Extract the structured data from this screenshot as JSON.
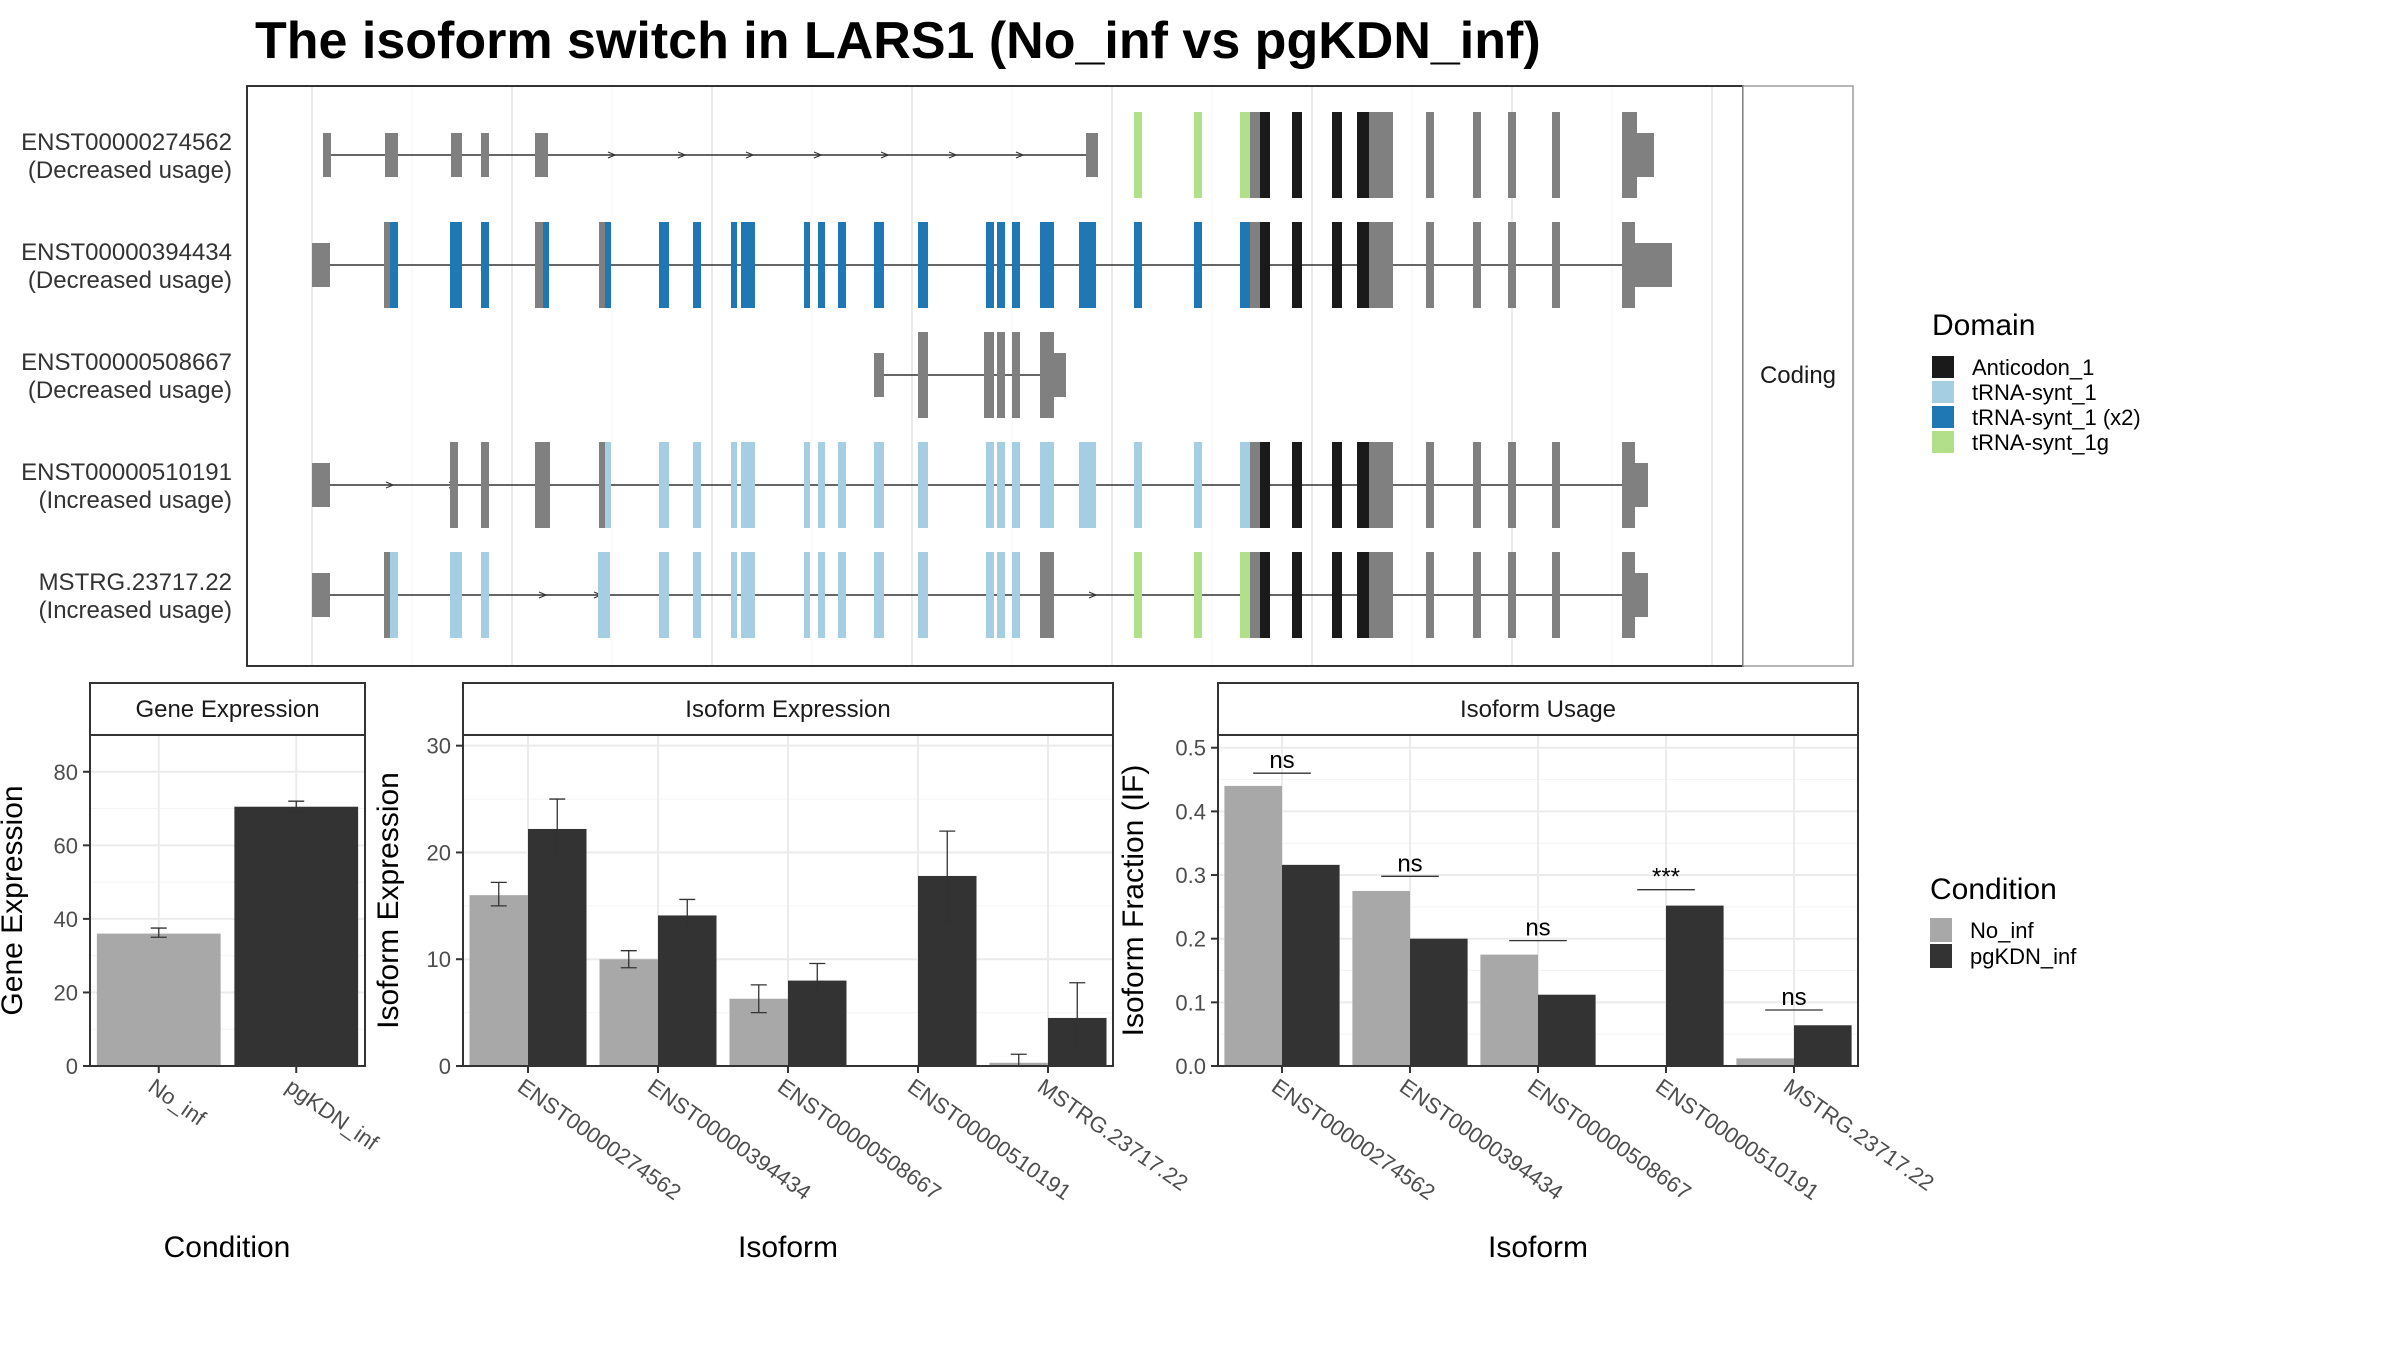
{
  "title": "The isoform switch in LARS1 (No_inf vs pgKDN_inf)",
  "structure_panel": {
    "strip_label": "Coding",
    "isoforms": [
      {
        "id": "ENST00000274562",
        "note": "(Decreased usage)"
      },
      {
        "id": "ENST00000394434",
        "note": "(Decreased usage)"
      },
      {
        "id": "ENST00000508667",
        "note": "(Decreased usage)"
      },
      {
        "id": "ENST00000510191",
        "note": "(Increased usage)"
      },
      {
        "id": "MSTRG.23717.22",
        "note": "(Increased usage)"
      }
    ]
  },
  "domain_legend": {
    "title": "Domain",
    "items": [
      {
        "label": "Anticodon_1",
        "color": "#1a1a1a"
      },
      {
        "label": "tRNA-synt_1",
        "color": "#a6cee3"
      },
      {
        "label": "tRNA-synt_1 (x2)",
        "color": "#1f78b4"
      },
      {
        "label": "tRNA-synt_1g",
        "color": "#b2df8a"
      }
    ]
  },
  "condition_legend": {
    "title": "Condition",
    "items": [
      {
        "label": "No_inf",
        "color": "#a8a8a8"
      },
      {
        "label": "pgKDN_inf",
        "color": "#333333"
      }
    ]
  },
  "chart_data": [
    {
      "type": "bar",
      "panel": "Gene Expression",
      "categories": [
        "No_inf",
        "pgKDN_inf"
      ],
      "values": [
        36,
        70.5
      ],
      "errors": [
        [
          35,
          37.5
        ],
        [
          69,
          72
        ]
      ],
      "colors": [
        "#a8a8a8",
        "#333333"
      ],
      "xlabel": "Condition",
      "ylabel": "Gene Expression",
      "ylim": [
        0,
        90
      ],
      "yticks": [
        0,
        20,
        40,
        60,
        80
      ],
      "grid": true
    },
    {
      "type": "bar",
      "panel": "Isoform Expression",
      "categories": [
        "ENST00000274562",
        "ENST00000394434",
        "ENST00000508667",
        "ENST00000510191",
        "MSTRG.23717.22"
      ],
      "series": [
        {
          "name": "No_inf",
          "values": [
            16,
            10,
            6.3,
            0,
            0.3
          ],
          "errors": [
            [
              15,
              17.2
            ],
            [
              9.2,
              10.8
            ],
            [
              5,
              7.6
            ],
            [
              0,
              0
            ],
            [
              0,
              1.1
            ]
          ]
        },
        {
          "name": "pgKDN_inf",
          "values": [
            22.2,
            14.1,
            8,
            17.8,
            4.5
          ],
          "errors": [
            [
              19.5,
              25
            ],
            [
              12.6,
              15.6
            ],
            [
              6.4,
              9.6
            ],
            [
              13.6,
              22
            ],
            [
              1.2,
              7.8
            ]
          ]
        }
      ],
      "xlabel": "Isoform",
      "ylabel": "Isoform Expression",
      "ylim": [
        0,
        31
      ],
      "yticks": [
        0,
        10,
        20,
        30
      ],
      "grid": true
    },
    {
      "type": "bar",
      "panel": "Isoform Usage",
      "categories": [
        "ENST00000274562",
        "ENST00000394434",
        "ENST00000508667",
        "ENST00000510191",
        "MSTRG.23717.22"
      ],
      "series": [
        {
          "name": "No_inf",
          "values": [
            0.44,
            0.275,
            0.175,
            0,
            0.012
          ]
        },
        {
          "name": "pgKDN_inf",
          "values": [
            0.316,
            0.2,
            0.112,
            0.252,
            0.064
          ]
        }
      ],
      "significance": [
        "ns",
        "ns",
        "ns",
        "***",
        "ns"
      ],
      "sig_y": [
        0.46,
        0.298,
        0.197,
        0.277,
        0.088
      ],
      "xlabel": "Isoform",
      "ylabel": "Isoform Fraction (IF)",
      "ylim": [
        0,
        0.52
      ],
      "yticks": [
        "0.0",
        "0.1",
        "0.2",
        "0.3",
        "0.4",
        "0.5"
      ],
      "grid": true
    }
  ]
}
